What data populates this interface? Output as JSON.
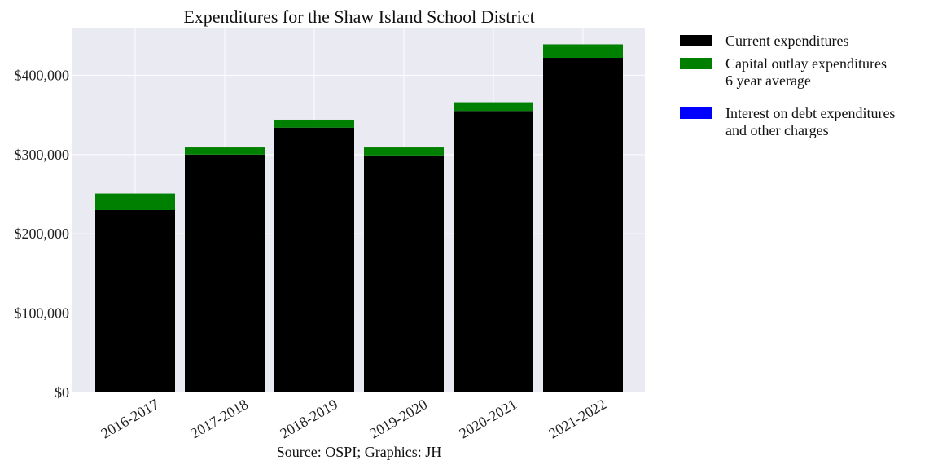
{
  "chart_data": {
    "type": "bar",
    "stacked": true,
    "title": "Expenditures for the Shaw Island School District",
    "xlabel": "",
    "ylabel": "",
    "source": "Source: OSPI; Graphics: JH",
    "categories": [
      "2016-2017",
      "2017-2018",
      "2018-2019",
      "2019-2020",
      "2020-2021",
      "2021-2022"
    ],
    "series": [
      {
        "name": "Current expenditures",
        "color": "#000000",
        "values": [
          230000,
          300000,
          334000,
          299000,
          355000,
          422000
        ]
      },
      {
        "name": "Capital outlay expenditures",
        "color": "#008000",
        "values": [
          21000,
          9000,
          10000,
          10000,
          11000,
          17000
        ]
      },
      {
        "name": "Interest on debt expenditures",
        "color": "#0000ff",
        "values": [
          0,
          0,
          0,
          0,
          0,
          0
        ]
      }
    ],
    "legend": [
      {
        "lines": [
          "Current expenditures"
        ],
        "color": "#000000"
      },
      {
        "lines": [
          "Capital outlay expenditures",
          "6 year average"
        ],
        "color": "#008000"
      },
      {
        "lines": [
          "Interest on debt expenditures",
          "and other charges"
        ],
        "color": "#0000ff"
      }
    ],
    "yticks": [
      0,
      100000,
      200000,
      300000,
      400000
    ],
    "ytick_labels": [
      "$0",
      "$100,000",
      "$200,000",
      "$300,000",
      "$400,000"
    ],
    "ylim": [
      0,
      460000
    ],
    "grid": true,
    "legend_position": "outside-right",
    "background": "#eaeaf2"
  }
}
